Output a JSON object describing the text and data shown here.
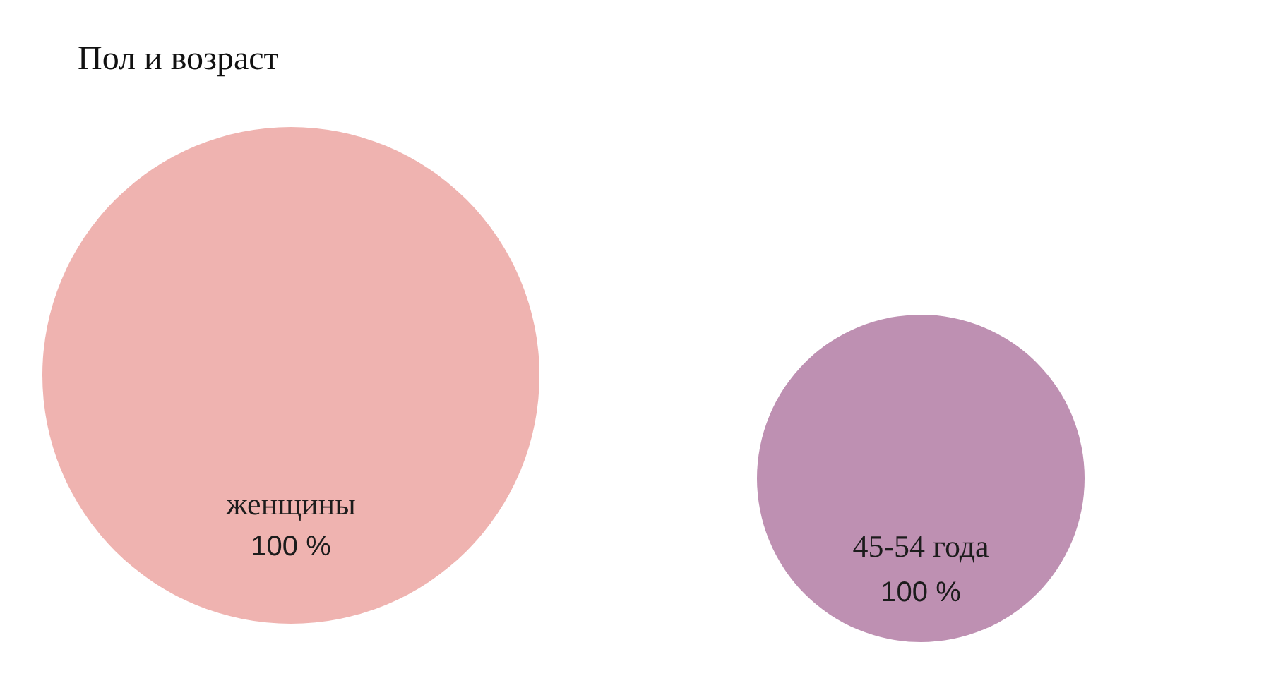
{
  "chart_data": [
    {
      "type": "pie",
      "title": "Пол и возраст",
      "categories": [
        "женщины"
      ],
      "values": [
        100
      ],
      "colors": [
        "#efb3b0"
      ],
      "value_labels": [
        "100 %"
      ]
    },
    {
      "type": "pie",
      "categories": [
        "45-54 года"
      ],
      "values": [
        100
      ],
      "colors": [
        "#be90b2"
      ],
      "value_labels": [
        "100 %"
      ]
    }
  ]
}
